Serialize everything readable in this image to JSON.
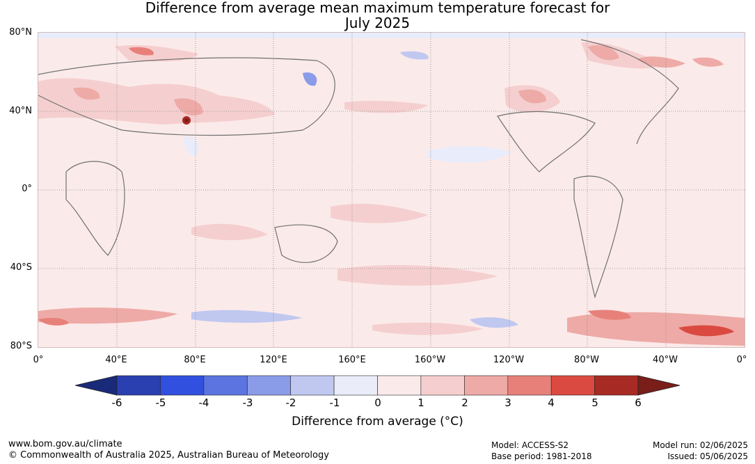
{
  "title_line1": "Difference from average mean maximum temperature forecast for",
  "title_line2": "July 2025",
  "lat_labels": [
    "80°N",
    "40°N",
    "0°",
    "40°S",
    "80°S"
  ],
  "lon_labels": [
    "0°",
    "40°E",
    "80°E",
    "120°E",
    "160°E",
    "160°W",
    "120°W",
    "80°W",
    "40°W",
    "0°"
  ],
  "colorbar": {
    "labels": [
      "-6",
      "-5",
      "-4",
      "-3",
      "-2",
      "-1",
      "0",
      "1",
      "2",
      "3",
      "4",
      "5",
      "6"
    ],
    "colors": [
      "#1a2a7a",
      "#2a3fb0",
      "#3250e0",
      "#5b74e0",
      "#8a9ce8",
      "#c0c8f0",
      "#eaecfa",
      "#fbeaea",
      "#f5cfcf",
      "#eeaaa6",
      "#e8807a",
      "#da4a40",
      "#a82a24",
      "#7a1e1a"
    ],
    "title": "Difference from average (°C)"
  },
  "footer": {
    "url": "www.bom.gov.au/climate",
    "copyright": "© Commonwealth of Australia 2025, Australian Bureau of Meteorology",
    "model": "Model: ACCESS-S2",
    "base_period": "Base period: 1981-2018",
    "model_run": "Model run: 02/06/2025",
    "issued": "Issued: 05/06/2025"
  }
}
